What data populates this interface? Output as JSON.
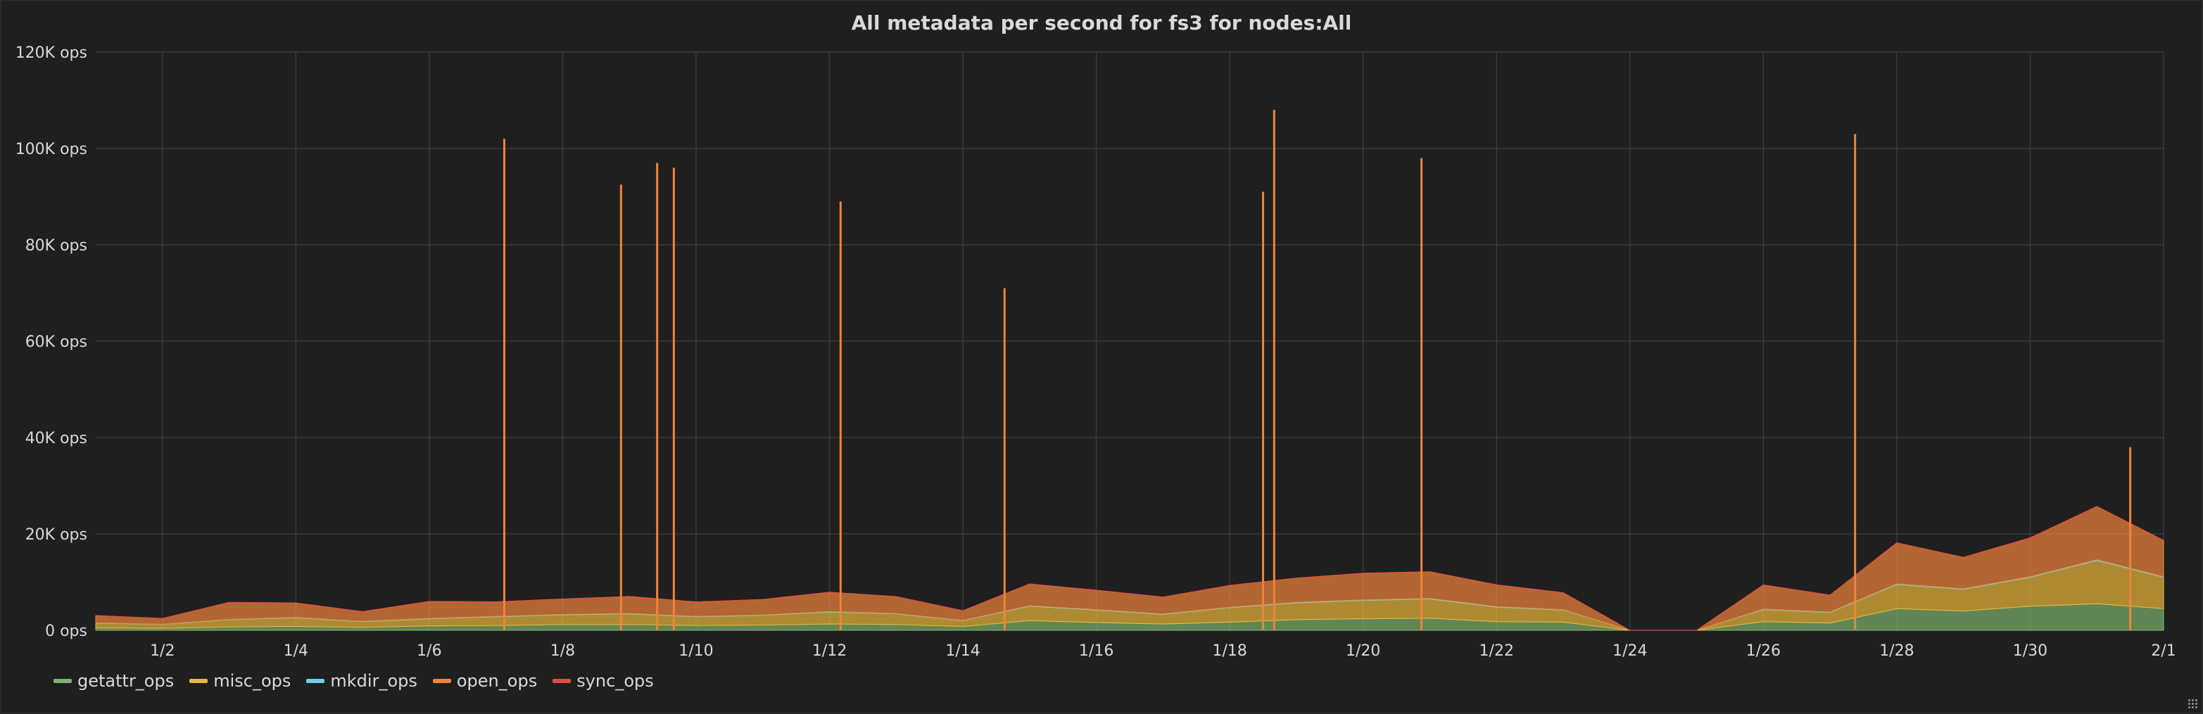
{
  "panel": {
    "title": "All metadata per second for fs3 for nodes:All"
  },
  "chart_data": {
    "type": "area",
    "stacked": true,
    "title": "All metadata per second for fs3 for nodes:All",
    "xlabel": "",
    "ylabel": "",
    "ylim": [
      0,
      120000
    ],
    "xlim": [
      "2021-01-01",
      "2021-02-01"
    ],
    "y_ticks": [
      "0 ops",
      "20K ops",
      "40K ops",
      "60K ops",
      "80K ops",
      "100K ops",
      "120K ops"
    ],
    "y_tick_values": [
      0,
      20000,
      40000,
      60000,
      80000,
      100000,
      120000
    ],
    "x_ticks": [
      "1/2",
      "1/4",
      "1/6",
      "1/8",
      "1/10",
      "1/12",
      "1/14",
      "1/16",
      "1/18",
      "1/20",
      "1/22",
      "1/24",
      "1/26",
      "1/28",
      "1/30",
      "2/1"
    ],
    "grid": true,
    "legend_position": "bottom-left",
    "series": [
      {
        "name": "getattr_ops",
        "color": "#7eb26d"
      },
      {
        "name": "misc_ops",
        "color": "#eab839"
      },
      {
        "name": "mkdir_ops",
        "color": "#6ed0e0"
      },
      {
        "name": "open_ops",
        "color": "#ef843c"
      },
      {
        "name": "sync_ops",
        "color": "#e24d42"
      }
    ],
    "time": [
      "1/1",
      "1/2",
      "1/3",
      "1/4",
      "1/5",
      "1/6",
      "1/7",
      "1/8",
      "1/9",
      "1/10",
      "1/11",
      "1/12",
      "1/13",
      "1/14",
      "1/15",
      "1/16",
      "1/17",
      "1/18",
      "1/19",
      "1/20",
      "1/21",
      "1/22",
      "1/23",
      "1/24",
      "1/25",
      "1/26",
      "1/27",
      "1/28",
      "1/29",
      "1/30",
      "1/31",
      "2/1"
    ],
    "stack_values": {
      "getattr_ops": [
        500,
        400,
        700,
        800,
        600,
        900,
        1000,
        1200,
        1200,
        1000,
        1100,
        1300,
        1200,
        800,
        2000,
        1600,
        1300,
        1700,
        2200,
        2400,
        2500,
        1800,
        1700,
        0,
        0,
        1800,
        1500,
        4500,
        4000,
        5000,
        5500,
        4500
      ],
      "misc_ops": [
        1000,
        800,
        1500,
        1800,
        1200,
        1500,
        1800,
        2000,
        2200,
        1800,
        2000,
        2500,
        2200,
        1200,
        3000,
        2600,
        2000,
        3000,
        3500,
        3800,
        4000,
        3000,
        2500,
        0,
        0,
        2500,
        2200,
        5000,
        4500,
        6000,
        9000,
        6500
      ],
      "mkdir_ops": [
        50,
        40,
        60,
        70,
        60,
        70,
        80,
        80,
        90,
        70,
        80,
        90,
        80,
        50,
        100,
        90,
        80,
        90,
        100,
        110,
        120,
        100,
        80,
        0,
        0,
        90,
        80,
        120,
        110,
        130,
        150,
        120
      ],
      "open_ops": [
        1500,
        1200,
        3500,
        3000,
        2000,
        3500,
        3000,
        3200,
        3500,
        3000,
        3200,
        4000,
        3500,
        2000,
        4500,
        4000,
        3500,
        4500,
        5000,
        5500,
        5500,
        4500,
        3500,
        0,
        0,
        5000,
        3500,
        8500,
        6500,
        8000,
        11000,
        7500
      ],
      "sync_ops": [
        20,
        20,
        30,
        30,
        20,
        30,
        30,
        30,
        40,
        30,
        30,
        40,
        30,
        20,
        40,
        40,
        30,
        40,
        50,
        50,
        50,
        40,
        30,
        0,
        0,
        40,
        30,
        60,
        50,
        60,
        70,
        60
      ]
    },
    "spikes": [
      {
        "time": "1/7 03:00",
        "value": 102000
      },
      {
        "time": "1/8 21:00",
        "value": 92500
      },
      {
        "time": "1/9 10:00",
        "value": 97000
      },
      {
        "time": "1/9 16:00",
        "value": 96000
      },
      {
        "time": "1/12 04:00",
        "value": 89000
      },
      {
        "time": "1/14 15:00",
        "value": 71000
      },
      {
        "time": "1/18 12:00",
        "value": 91000
      },
      {
        "time": "1/18 16:00",
        "value": 108000
      },
      {
        "time": "1/20 21:00",
        "value": 98000
      },
      {
        "time": "1/27 09:00",
        "value": 103000
      },
      {
        "time": "1/31 12:00",
        "value": 38000
      }
    ]
  },
  "legend": {
    "items": [
      {
        "label": "getattr_ops",
        "color": "#7eb26d"
      },
      {
        "label": "misc_ops",
        "color": "#eab839"
      },
      {
        "label": "mkdir_ops",
        "color": "#6ed0e0"
      },
      {
        "label": "open_ops",
        "color": "#ef843c"
      },
      {
        "label": "sync_ops",
        "color": "#e24d42"
      }
    ]
  }
}
